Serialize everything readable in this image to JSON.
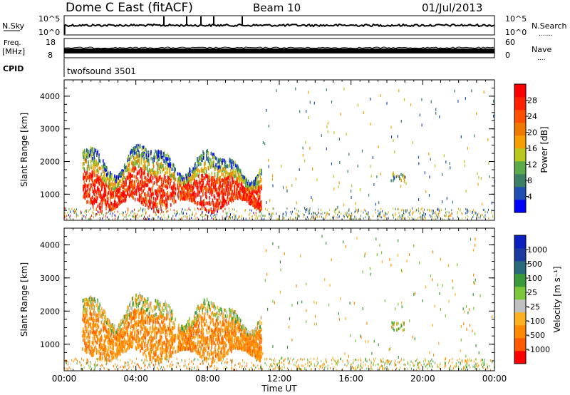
{
  "header": {
    "station": "Dome C East (fitACF)",
    "beam": "Beam 10",
    "date": "01/Jul/2013"
  },
  "panels": {
    "nsky": {
      "label": "N.Sky",
      "top_left": "10^5",
      "bottom_left": "10^0",
      "top_right": "10^5",
      "bottom_right": "10^0",
      "right_label": "N.Search",
      "right_dots": "......."
    },
    "freq": {
      "label_line1": "Freq.",
      "label_line2": "[MHz]",
      "top_left": "18",
      "bottom_left": "8",
      "top_right": "60",
      "bottom_right": "0",
      "right_label": "Nave",
      "right_dots": "...."
    },
    "cpid": {
      "label": "CPID",
      "program": "twofsound 3501"
    }
  },
  "colors": {
    "power_scale": [
      "#0000ff",
      "#1f4fb5",
      "#3a7f66",
      "#5aaa4a",
      "#b8c81e",
      "#f5a000",
      "#f07a00",
      "#ff5000",
      "#ff2000",
      "#ff0000"
    ],
    "velocity_scale": [
      "#ff0000",
      "#ff5a00",
      "#ff8a00",
      "#ffb020",
      "#c0c0c0",
      "#7ac83a",
      "#3a9a3a",
      "#2a6a7a",
      "#1a3aa0",
      "#0a20c0"
    ]
  },
  "chart_data": [
    {
      "type": "heatmap",
      "name": "power",
      "ylabel": "Slant Range [km]",
      "ylim": [
        200,
        4500
      ],
      "yticks": [
        "1000",
        "2000",
        "3000",
        "4000"
      ],
      "xlim": [
        0,
        24
      ],
      "colorbar": {
        "label": "Power [dB]",
        "ticks": [
          "4",
          "8",
          "12",
          "16",
          "20",
          "24",
          "28"
        ],
        "range": [
          0,
          32
        ]
      }
    },
    {
      "type": "heatmap",
      "name": "velocity",
      "ylabel": "Slant Range [km]",
      "ylim": [
        200,
        4500
      ],
      "yticks": [
        "1000",
        "2000",
        "3000",
        "4000"
      ],
      "xlim": [
        0,
        24
      ],
      "xticks": [
        "00:00",
        "04:00",
        "08:00",
        "12:00",
        "16:00",
        "20:00",
        "00:00"
      ],
      "xlabel": "Time UT",
      "colorbar": {
        "label": "Velocity [m s⁻¹]",
        "ticks": [
          "-1000",
          "-500",
          "-100",
          "-25",
          "25",
          "100",
          "500",
          "1000"
        ]
      }
    }
  ]
}
